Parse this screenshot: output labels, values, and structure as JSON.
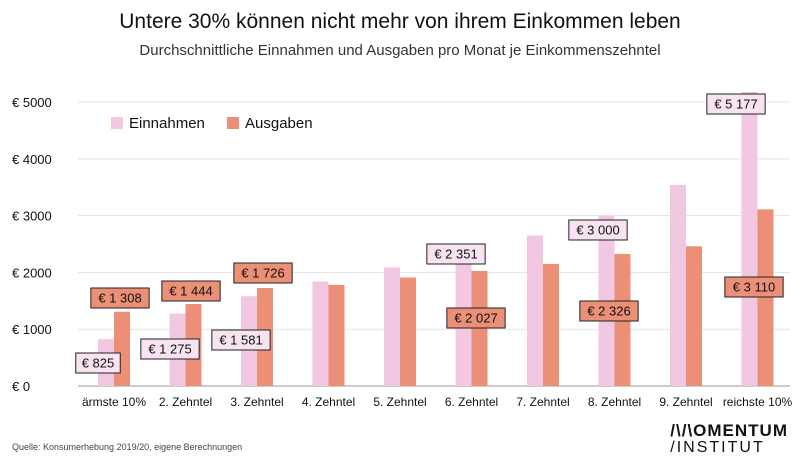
{
  "chart_data": {
    "type": "bar",
    "title": "Untere 30% können nicht mehr von ihrem Einkommen leben",
    "subtitle": "Durchschnittliche Einnahmen und Ausgaben pro Monat je Einkommenszehntel",
    "categories": [
      "ärmste 10%",
      "2. Zehntel",
      "3. Zehntel",
      "4. Zehntel",
      "5. Zehntel",
      "6. Zehntel",
      "7. Zehntel",
      "8. Zehntel",
      "9. Zehntel",
      "reichste 10%"
    ],
    "series": [
      {
        "name": "Einnahmen",
        "color": "#f2c7e1",
        "values": [
          825,
          1275,
          1581,
          1840,
          2090,
          2351,
          2650,
          3000,
          3540,
          5177
        ]
      },
      {
        "name": "Ausgaben",
        "color": "#ec8f77",
        "values": [
          1308,
          1444,
          1726,
          1780,
          1910,
          2027,
          2150,
          2326,
          2460,
          3110
        ]
      }
    ],
    "yticks": [
      0,
      1000,
      2000,
      3000,
      4000,
      5000
    ],
    "ytick_labels": [
      "€ 0",
      "€ 1000",
      "€ 2000",
      "€ 3000",
      "€ 4000",
      "€ 5000"
    ],
    "ylim": [
      0,
      5300
    ],
    "legend_position": "top-left",
    "grid": true,
    "annotations": [
      {
        "series": 0,
        "index": 0,
        "text": "€ 825"
      },
      {
        "series": 0,
        "index": 1,
        "text": "€ 1 275"
      },
      {
        "series": 0,
        "index": 2,
        "text": "€ 1 581"
      },
      {
        "series": 0,
        "index": 5,
        "text": "€ 2 351"
      },
      {
        "series": 0,
        "index": 7,
        "text": "€ 3 000"
      },
      {
        "series": 0,
        "index": 9,
        "text": "€ 5 177"
      },
      {
        "series": 1,
        "index": 0,
        "text": "€ 1 308"
      },
      {
        "series": 1,
        "index": 1,
        "text": "€ 1 444"
      },
      {
        "series": 1,
        "index": 2,
        "text": "€ 1 726"
      },
      {
        "series": 1,
        "index": 5,
        "text": "€ 2 027"
      },
      {
        "series": 1,
        "index": 7,
        "text": "€ 2 326"
      },
      {
        "series": 1,
        "index": 9,
        "text": "€ 3 110"
      }
    ]
  },
  "footer": {
    "source": "Quelle: Konsumerhebung 2019/20, eigene Berechnungen",
    "logo_line1": "/\\/\\OMENTUM",
    "logo_line2": "/INSTITUT"
  }
}
